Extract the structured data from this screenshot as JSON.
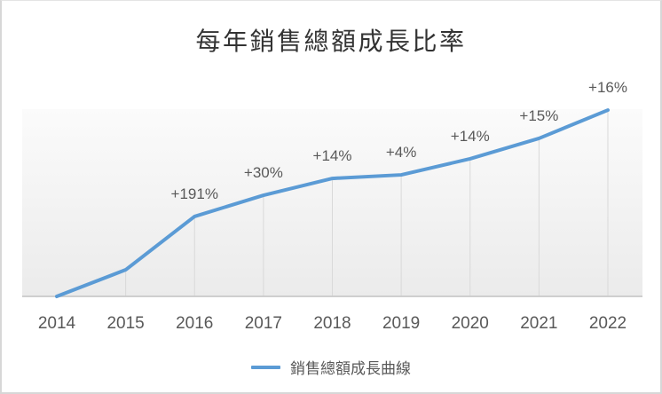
{
  "title": "每年銷售總額成長比率",
  "legend": {
    "label": "銷售總額成長曲線"
  },
  "colors": {
    "line": "#5b9bd5",
    "title_text": "#333333",
    "label_text": "#595959",
    "axis_text": "#595959",
    "drop_line": "#d9d9d9",
    "axis_line": "#c9c9c9",
    "plot_bg_top": "#fbfbfb",
    "plot_bg_bottom": "#ebebeb"
  },
  "chart_data": {
    "type": "line",
    "title": "每年銷售總額成長比率",
    "categories": [
      "2014",
      "2015",
      "2016",
      "2017",
      "2018",
      "2019",
      "2020",
      "2021",
      "2022"
    ],
    "series": [
      {
        "name": "銷售總額成長曲線",
        "growth_labels": [
          "",
          "",
          "+191%",
          "+30%",
          "+14%",
          "+4%",
          "+14%",
          "+15%",
          "+16%"
        ],
        "values_norm": [
          0,
          0.142,
          0.427,
          0.54,
          0.63,
          0.649,
          0.735,
          0.844,
          0.995
        ],
        "values_relative_to_2015": [
          0,
          1.0,
          2.91,
          3.78,
          4.31,
          4.49,
          5.11,
          5.88,
          6.82
        ]
      }
    ],
    "xlabel": "",
    "ylabel": "",
    "y_axis_visible": false,
    "grid": "drop-lines-per-point",
    "legend_position": "bottom",
    "data_label_position": "above"
  }
}
